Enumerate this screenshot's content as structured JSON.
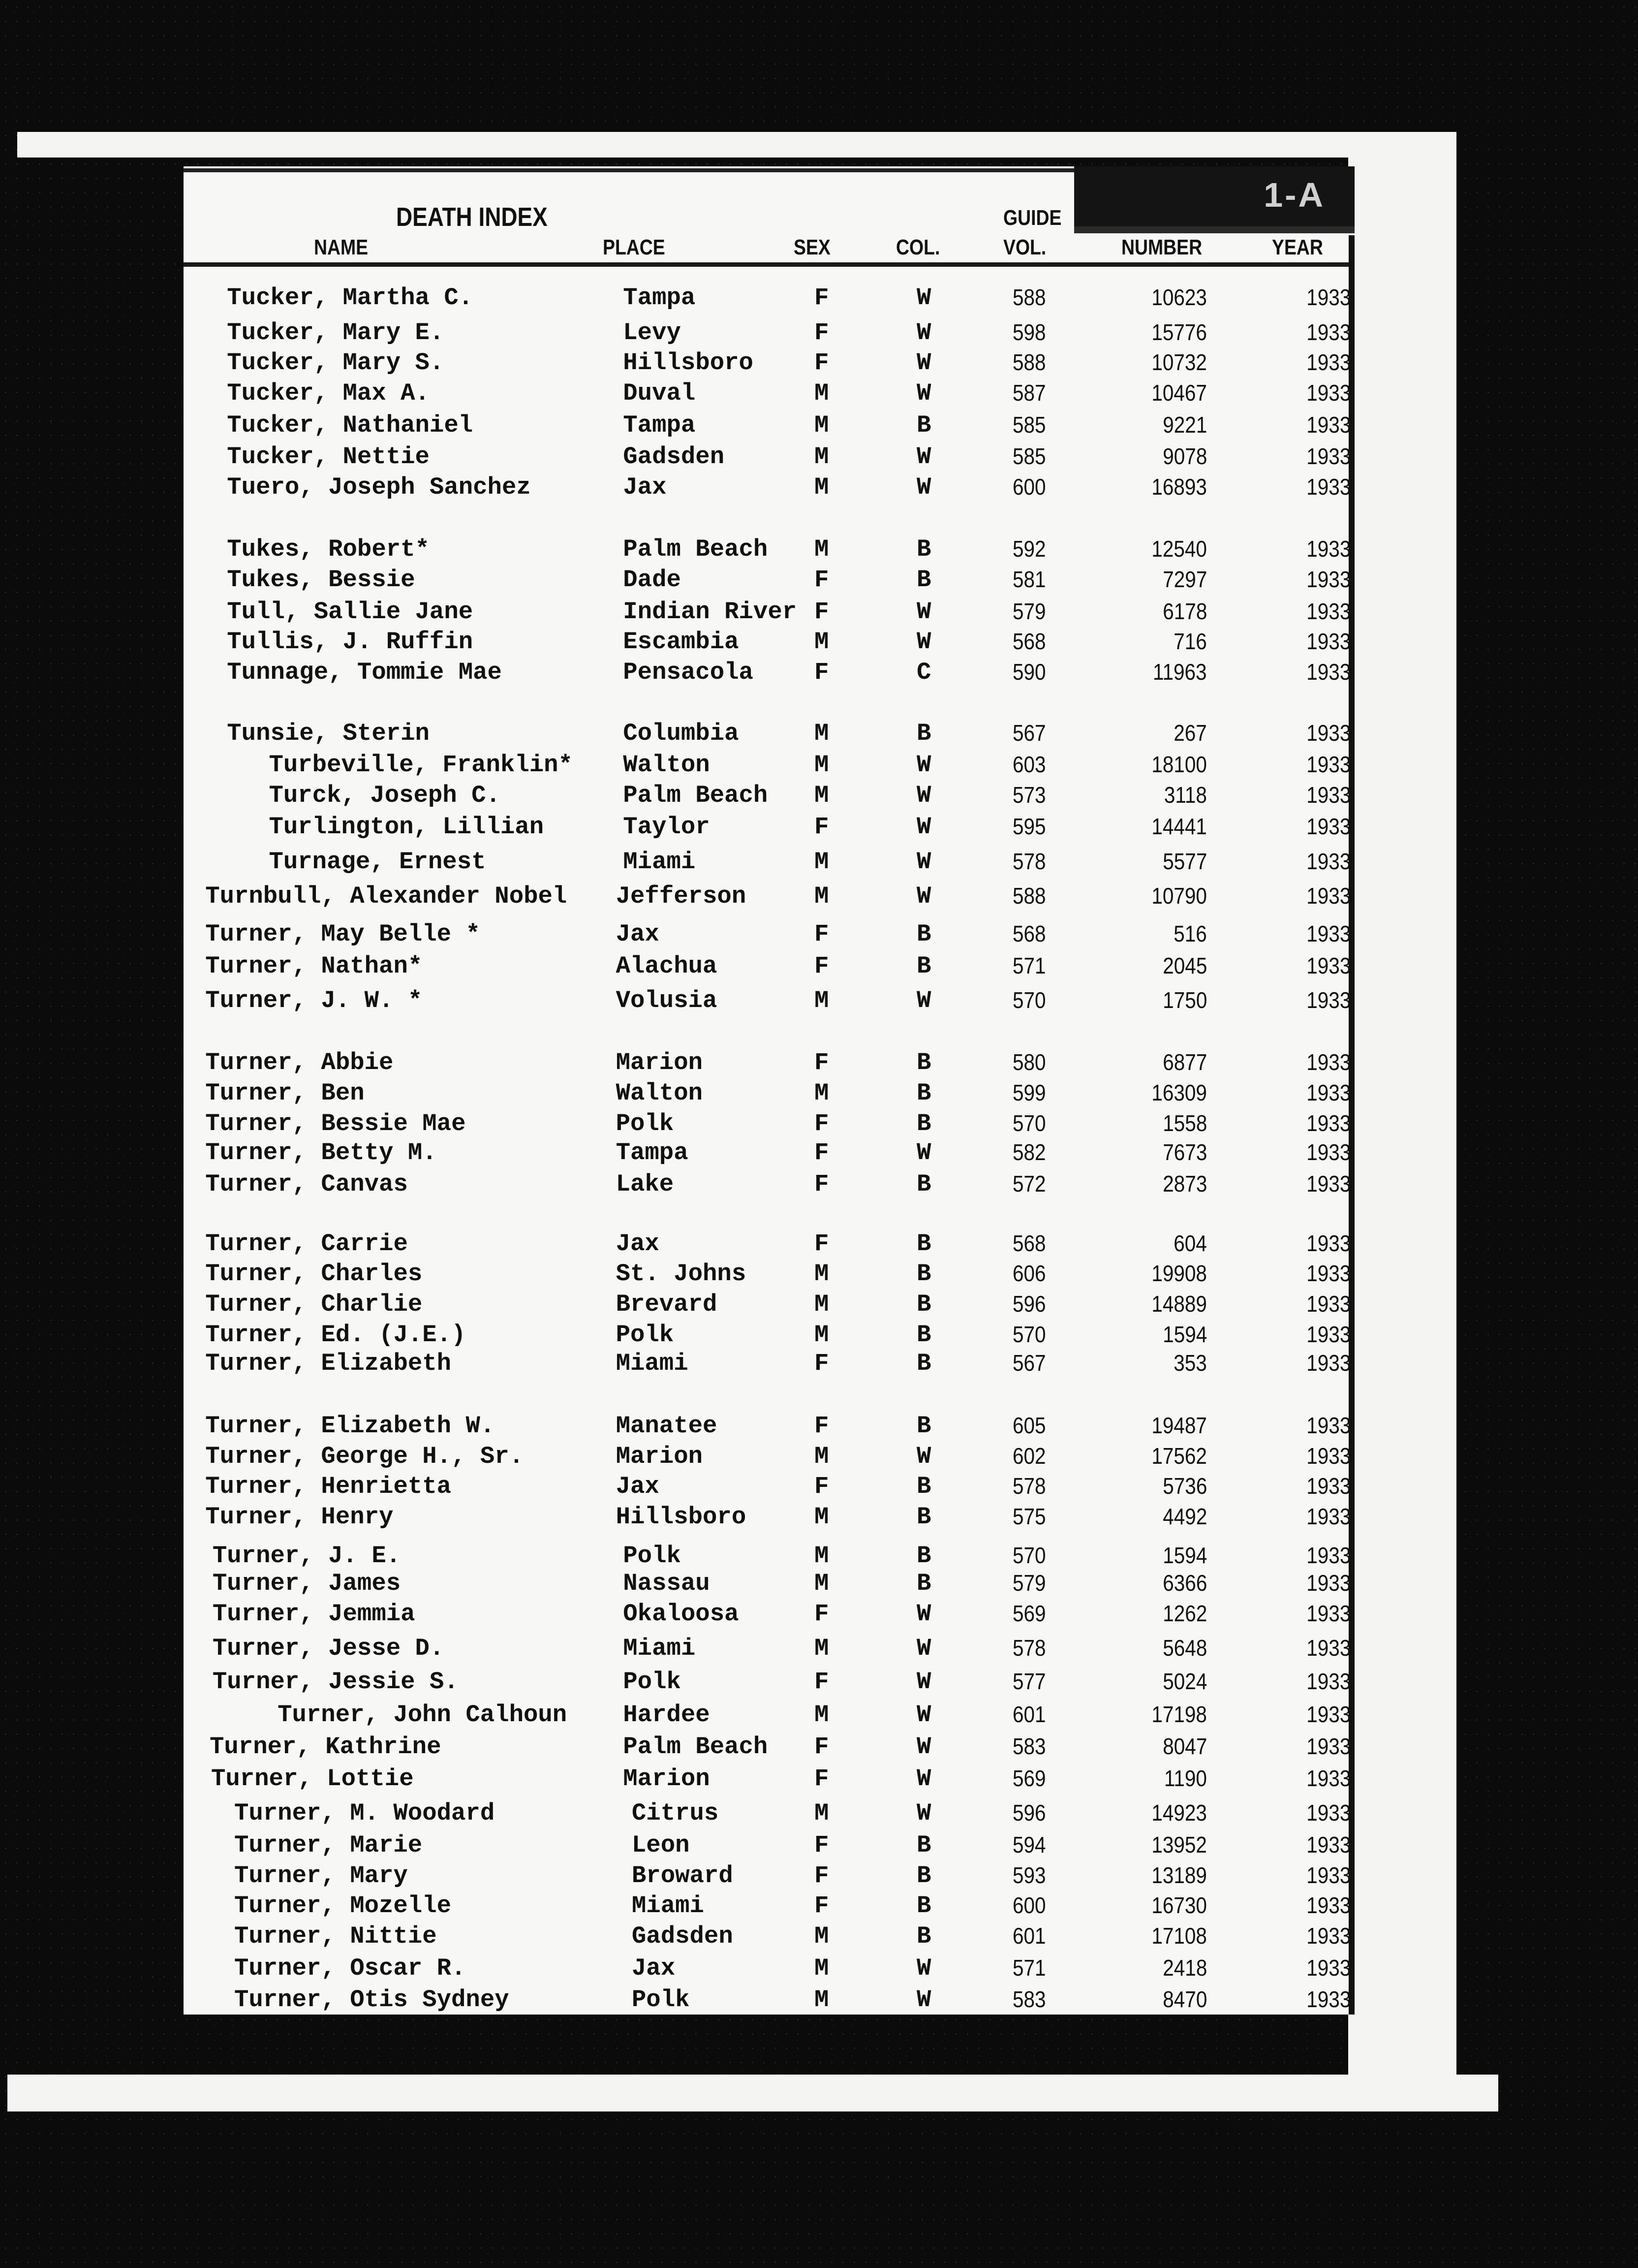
{
  "header": {
    "title": "DEATH INDEX",
    "guide": "GUIDE",
    "corner_label": "1-A",
    "columns": {
      "name": "NAME",
      "place": "PLACE",
      "sex": "SEX",
      "col": "COL.",
      "vol": "VOL.",
      "number": "NUMBER",
      "year": "YEAR"
    }
  },
  "rows": [
    {
      "name": "Tucker, Martha C.",
      "place": "Tampa",
      "sex": "F",
      "col": "W",
      "vol": "588",
      "number": "10623",
      "year": "1933"
    },
    {
      "name": "Tucker, Mary E.",
      "place": "Levy",
      "sex": "F",
      "col": "W",
      "vol": "598",
      "number": "15776",
      "year": "1933"
    },
    {
      "name": "Tucker, Mary S.",
      "place": "Hillsboro",
      "sex": "F",
      "col": "W",
      "vol": "588",
      "number": "10732",
      "year": "1933"
    },
    {
      "name": "Tucker, Max A.",
      "place": "Duval",
      "sex": "M",
      "col": "W",
      "vol": "587",
      "number": "10467",
      "year": "1933"
    },
    {
      "name": "Tucker, Nathaniel",
      "place": "Tampa",
      "sex": "M",
      "col": "B",
      "vol": "585",
      "number": "9221",
      "year": "1933"
    },
    {
      "name": "Tucker, Nettie",
      "place": "Gadsden",
      "sex": "M",
      "col": "W",
      "vol": "585",
      "number": "9078",
      "year": "1933"
    },
    {
      "name": "Tuero, Joseph Sanchez",
      "place": "Jax",
      "sex": "M",
      "col": "W",
      "vol": "600",
      "number": "16893",
      "year": "1933"
    },
    {
      "name": "Tukes, Robert*",
      "place": "Palm Beach",
      "sex": "M",
      "col": "B",
      "vol": "592",
      "number": "12540",
      "year": "1933"
    },
    {
      "name": "Tukes, Bessie",
      "place": "Dade",
      "sex": "F",
      "col": "B",
      "vol": "581",
      "number": "7297",
      "year": "1933"
    },
    {
      "name": "Tull, Sallie Jane",
      "place": "Indian River",
      "sex": "F",
      "col": "W",
      "vol": "579",
      "number": "6178",
      "year": "1933"
    },
    {
      "name": "Tullis, J. Ruffin",
      "place": "Escambia",
      "sex": "M",
      "col": "W",
      "vol": "568",
      "number": "716",
      "year": "1933"
    },
    {
      "name": "Tunnage, Tommie Mae",
      "place": "Pensacola",
      "sex": "F",
      "col": "C",
      "vol": "590",
      "number": "11963",
      "year": "1933"
    },
    {
      "name": "Tunsie, Sterin",
      "place": "Columbia",
      "sex": "M",
      "col": "B",
      "vol": "567",
      "number": "267",
      "year": "1933"
    },
    {
      "name": "Turbeville, Franklin*",
      "place": "Walton",
      "sex": "M",
      "col": "W",
      "vol": "603",
      "number": "18100",
      "year": "1933"
    },
    {
      "name": "Turck, Joseph C.",
      "place": "Palm Beach",
      "sex": "M",
      "col": "W",
      "vol": "573",
      "number": "3118",
      "year": "1933"
    },
    {
      "name": "Turlington, Lillian",
      "place": "Taylor",
      "sex": "F",
      "col": "W",
      "vol": "595",
      "number": "14441",
      "year": "1933"
    },
    {
      "name": "Turnage, Ernest",
      "place": "Miami",
      "sex": "M",
      "col": "W",
      "vol": "578",
      "number": "5577",
      "year": "1933"
    },
    {
      "name": "Turnbull, Alexander Nobel",
      "place": "Jefferson",
      "sex": "M",
      "col": "W",
      "vol": "588",
      "number": "10790",
      "year": "1933"
    },
    {
      "name": "Turner, May Belle *",
      "place": "Jax",
      "sex": "F",
      "col": "B",
      "vol": "568",
      "number": "516",
      "year": "1933"
    },
    {
      "name": "Turner, Nathan*",
      "place": "Alachua",
      "sex": "F",
      "col": "B",
      "vol": "571",
      "number": "2045",
      "year": "1933"
    },
    {
      "name": "Turner, J. W. *",
      "place": "Volusia",
      "sex": "M",
      "col": "W",
      "vol": "570",
      "number": "1750",
      "year": "1933"
    },
    {
      "name": "Turner, Abbie",
      "place": "Marion",
      "sex": "F",
      "col": "B",
      "vol": "580",
      "number": "6877",
      "year": "1933"
    },
    {
      "name": "Turner, Ben",
      "place": "Walton",
      "sex": "M",
      "col": "B",
      "vol": "599",
      "number": "16309",
      "year": "1933"
    },
    {
      "name": "Turner, Bessie Mae",
      "place": "Polk",
      "sex": "F",
      "col": "B",
      "vol": "570",
      "number": "1558",
      "year": "1933"
    },
    {
      "name": "Turner, Betty M.",
      "place": "Tampa",
      "sex": "F",
      "col": "W",
      "vol": "582",
      "number": "7673",
      "year": "1933"
    },
    {
      "name": "Turner, Canvas",
      "place": "Lake",
      "sex": "F",
      "col": "B",
      "vol": "572",
      "number": "2873",
      "year": "1933"
    },
    {
      "name": "Turner, Carrie",
      "place": "Jax",
      "sex": "F",
      "col": "B",
      "vol": "568",
      "number": "604",
      "year": "1933"
    },
    {
      "name": "Turner, Charles",
      "place": "St. Johns",
      "sex": "M",
      "col": "B",
      "vol": "606",
      "number": "19908",
      "year": "1933"
    },
    {
      "name": "Turner, Charlie",
      "place": "Brevard",
      "sex": "M",
      "col": "B",
      "vol": "596",
      "number": "14889",
      "year": "1933"
    },
    {
      "name": "Turner, Ed. (J.E.)",
      "place": "Polk",
      "sex": "M",
      "col": "B",
      "vol": "570",
      "number": "1594",
      "year": "1933"
    },
    {
      "name": "Turner, Elizabeth",
      "place": "Miami",
      "sex": "F",
      "col": "B",
      "vol": "567",
      "number": "353",
      "year": "1933"
    },
    {
      "name": "Turner, Elizabeth W.",
      "place": "Manatee",
      "sex": "F",
      "col": "B",
      "vol": "605",
      "number": "19487",
      "year": "1933"
    },
    {
      "name": "Turner, George H., Sr.",
      "place": "Marion",
      "sex": "M",
      "col": "W",
      "vol": "602",
      "number": "17562",
      "year": "1933"
    },
    {
      "name": "Turner, Henrietta",
      "place": "Jax",
      "sex": "F",
      "col": "B",
      "vol": "578",
      "number": "5736",
      "year": "1933"
    },
    {
      "name": "Turner, Henry",
      "place": "Hillsboro",
      "sex": "M",
      "col": "B",
      "vol": "575",
      "number": "4492",
      "year": "1933"
    },
    {
      "name": "Turner, J. E.",
      "place": "Polk",
      "sex": "M",
      "col": "B",
      "vol": "570",
      "number": "1594",
      "year": "1933"
    },
    {
      "name": "Turner, James",
      "place": "Nassau",
      "sex": "M",
      "col": "B",
      "vol": "579",
      "number": "6366",
      "year": "1933"
    },
    {
      "name": "Turner, Jemmia",
      "place": "Okaloosa",
      "sex": "F",
      "col": "W",
      "vol": "569",
      "number": "1262",
      "year": "1933"
    },
    {
      "name": "Turner, Jesse D.",
      "place": "Miami",
      "sex": "M",
      "col": "W",
      "vol": "578",
      "number": "5648",
      "year": "1933"
    },
    {
      "name": "Turner, Jessie S.",
      "place": "Polk",
      "sex": "F",
      "col": "W",
      "vol": "577",
      "number": "5024",
      "year": "1933"
    },
    {
      "name": "Turner, John Calhoun",
      "place": "Hardee",
      "sex": "M",
      "col": "W",
      "vol": "601",
      "number": "17198",
      "year": "1933"
    },
    {
      "name": "Turner, Kathrine",
      "place": "Palm Beach",
      "sex": "F",
      "col": "W",
      "vol": "583",
      "number": "8047",
      "year": "1933"
    },
    {
      "name": "Turner, Lottie",
      "place": "Marion",
      "sex": "F",
      "col": "W",
      "vol": "569",
      "number": "1190",
      "year": "1933"
    },
    {
      "name": "Turner, M. Woodard",
      "place": "Citrus",
      "sex": "M",
      "col": "W",
      "vol": "596",
      "number": "14923",
      "year": "1933"
    },
    {
      "name": "Turner, Marie",
      "place": "Leon",
      "sex": "F",
      "col": "B",
      "vol": "594",
      "number": "13952",
      "year": "1933"
    },
    {
      "name": "Turner, Mary",
      "place": "Broward",
      "sex": "F",
      "col": "B",
      "vol": "593",
      "number": "13189",
      "year": "1933"
    },
    {
      "name": "Turner, Mozelle",
      "place": "Miami",
      "sex": "F",
      "col": "B",
      "vol": "600",
      "number": "16730",
      "year": "1933"
    },
    {
      "name": "Turner, Nittie",
      "place": "Gadsden",
      "sex": "M",
      "col": "B",
      "vol": "601",
      "number": "17108",
      "year": "1933"
    },
    {
      "name": "Turner, Oscar R.",
      "place": "Jax",
      "sex": "M",
      "col": "W",
      "vol": "571",
      "number": "2418",
      "year": "1933"
    },
    {
      "name": "Turner, Otis Sydney",
      "place": "Polk",
      "sex": "M",
      "col": "W",
      "vol": "583",
      "number": "8470",
      "year": "1933"
    }
  ]
}
